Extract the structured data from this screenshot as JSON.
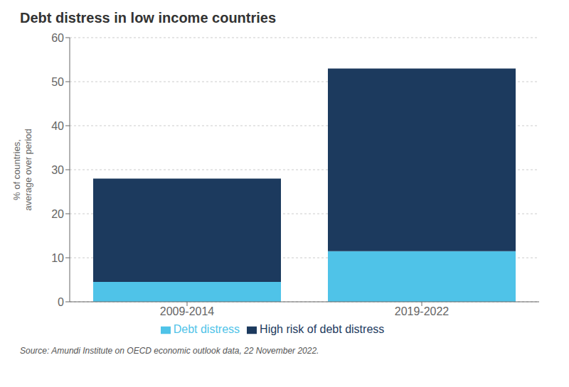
{
  "chart_data": {
    "type": "bar",
    "stacked": true,
    "title": "Debt distress in low income countries",
    "categories": [
      "2009-2014",
      "2019-2022"
    ],
    "series": [
      {
        "name": "Debt distress",
        "color": "#4FC3E8",
        "values": [
          4.5,
          11.5
        ]
      },
      {
        "name": "High risk of debt distress",
        "color": "#1C3A5E",
        "values": [
          23.5,
          41.5
        ]
      }
    ],
    "ylabel": "% of countries,\naverage over period",
    "ylim": [
      0,
      60
    ],
    "yticks": [
      0,
      10,
      20,
      30,
      40,
      50,
      60
    ],
    "grid": true,
    "legend": "bottom",
    "annotations": [
      "Source: Amundi Institute on OECD economic outlook data, 22 November 2022."
    ]
  }
}
